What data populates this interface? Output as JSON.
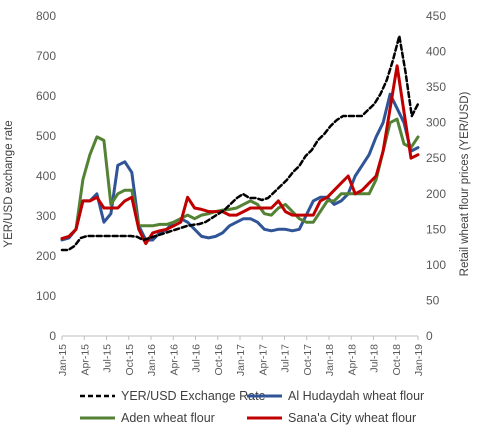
{
  "chart_data": {
    "type": "line",
    "title": "",
    "ylabel_left": "YER/USD exchange rate",
    "ylabel_right": "Retail wheat flour prices (YER/USD)",
    "ylim_left": [
      0,
      800
    ],
    "ylim_right": [
      0,
      450
    ],
    "yticks_left": [
      "0",
      "100",
      "200",
      "300",
      "400",
      "500",
      "600",
      "700",
      "800"
    ],
    "yticks_right": [
      "0",
      "50",
      "100",
      "150",
      "200",
      "250",
      "300",
      "350",
      "400",
      "450"
    ],
    "x_tick_labels": [
      "Jan-15",
      "Apr-15",
      "Jul-15",
      "Oct-15",
      "Jan-16",
      "Apr-16",
      "Jul-16",
      "Oct-16",
      "Jan-17",
      "Apr-17",
      "Jul-17",
      "Oct-17",
      "Jan-18",
      "Apr-18",
      "Jul-18",
      "Oct-18",
      "Jan-19"
    ],
    "grid": false,
    "legend_position": "bottom",
    "series": [
      {
        "name": "YER/USD Exchange Rate",
        "axis": "left",
        "color": "#000000",
        "dash": true,
        "values": [
          215,
          215,
          225,
          245,
          250,
          250,
          250,
          250,
          250,
          250,
          250,
          250,
          248,
          240,
          245,
          250,
          255,
          260,
          265,
          270,
          275,
          278,
          280,
          285,
          295,
          305,
          315,
          330,
          345,
          355,
          345,
          345,
          340,
          345,
          360,
          375,
          390,
          410,
          425,
          450,
          465,
          490,
          505,
          525,
          540,
          550,
          550,
          550,
          550,
          565,
          580,
          605,
          640,
          690,
          750,
          660,
          550,
          580
        ]
      },
      {
        "name": "Al Hudaydah wheat flour",
        "axis": "right",
        "color": "#2f5597",
        "dash": false,
        "values": [
          135,
          138,
          150,
          190,
          190,
          200,
          160,
          172,
          240,
          245,
          230,
          155,
          135,
          135,
          145,
          150,
          160,
          165,
          160,
          150,
          140,
          138,
          140,
          145,
          155,
          160,
          165,
          165,
          160,
          150,
          148,
          150,
          150,
          148,
          150,
          170,
          190,
          195,
          195,
          185,
          190,
          200,
          225,
          240,
          255,
          280,
          300,
          340,
          320,
          300,
          260,
          265
        ]
      },
      {
        "name": "Aden wheat flour",
        "axis": "right",
        "color": "#548235",
        "dash": false,
        "values": [
          137,
          140,
          150,
          220,
          255,
          280,
          275,
          185,
          200,
          205,
          205,
          155,
          155,
          155,
          157,
          157,
          160,
          165,
          170,
          165,
          170,
          172,
          175,
          177,
          178,
          180,
          185,
          190,
          185,
          172,
          170,
          180,
          185,
          175,
          165,
          160,
          160,
          175,
          190,
          190,
          200,
          200,
          200,
          200,
          200,
          220,
          260,
          300,
          305,
          270,
          265,
          280
        ]
      },
      {
        "name": "Sana'a City wheat flour",
        "axis": "right",
        "color": "#c00000",
        "dash": false,
        "values": [
          137,
          140,
          150,
          190,
          190,
          195,
          180,
          180,
          180,
          190,
          195,
          150,
          130,
          145,
          148,
          150,
          155,
          160,
          195,
          180,
          178,
          175,
          175,
          175,
          170,
          170,
          175,
          180,
          180,
          180,
          180,
          190,
          175,
          170,
          170,
          170,
          170,
          190,
          195,
          205,
          215,
          225,
          200,
          205,
          215,
          225,
          260,
          320,
          380,
          315,
          250,
          255
        ]
      }
    ]
  }
}
